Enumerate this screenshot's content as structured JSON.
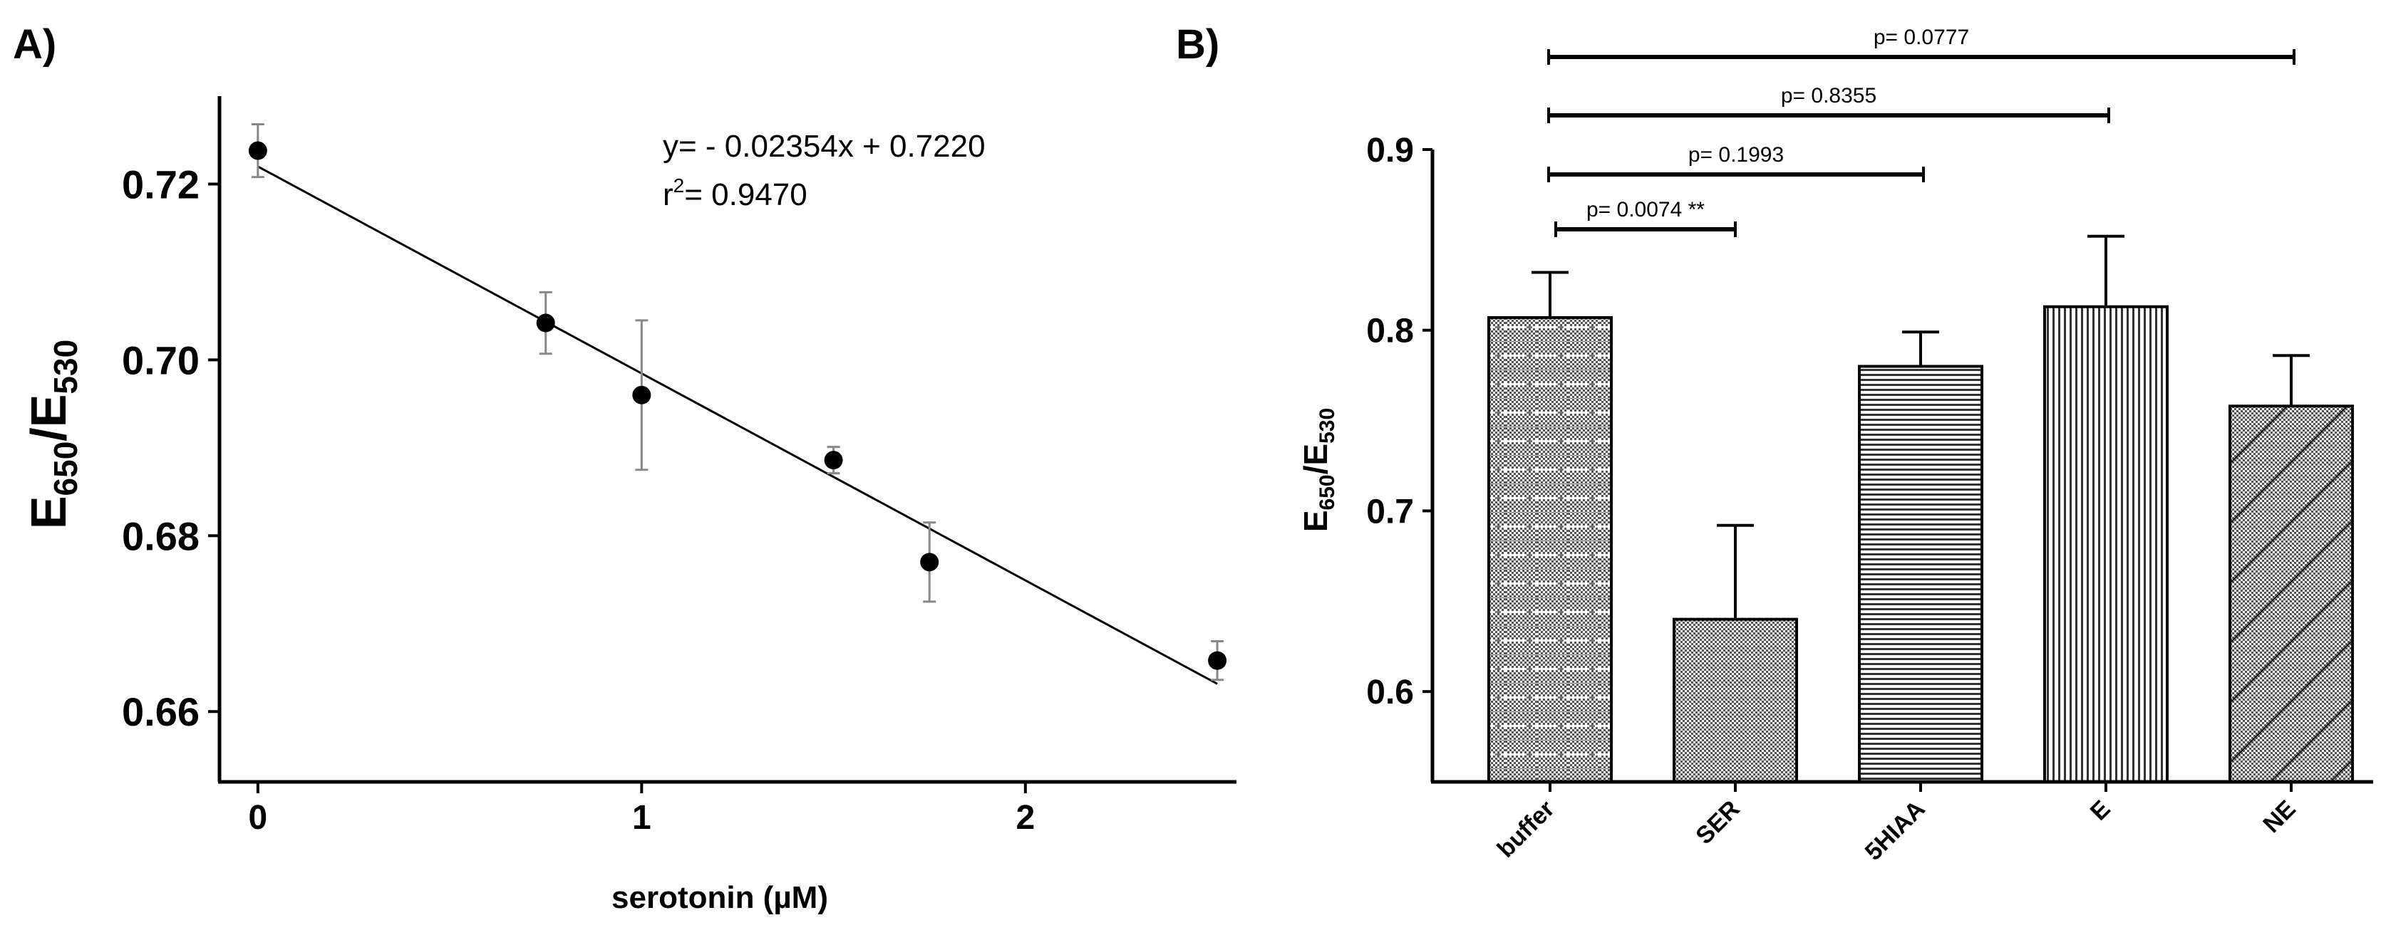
{
  "chart_data": [
    {
      "panel_label": "A)",
      "type": "scatter",
      "title": "",
      "xlabel": "serotonin (µM)",
      "ylabel": {
        "main": "E",
        "sub1": "650",
        "mid": "/E",
        "sub2": "530"
      },
      "xlim": [
        -0.1,
        2.55
      ],
      "ylim": [
        0.652,
        0.73
      ],
      "xticks": [
        0,
        1,
        2
      ],
      "xtick_labels": [
        "0",
        "1",
        "2"
      ],
      "yticks": [
        0.66,
        0.68,
        0.7,
        0.72
      ],
      "ytick_labels": [
        "0.66",
        "0.68",
        "0.70",
        "0.72"
      ],
      "points": [
        {
          "x": 0,
          "y": 0.7238,
          "err": 0.003
        },
        {
          "x": 0.75,
          "y": 0.7042,
          "err": 0.0035
        },
        {
          "x": 1.0,
          "y": 0.696,
          "err": 0.0085
        },
        {
          "x": 1.5,
          "y": 0.6886,
          "err": 0.0015
        },
        {
          "x": 1.75,
          "y": 0.677,
          "err": 0.0045
        },
        {
          "x": 2.5,
          "y": 0.6658,
          "err": 0.0022
        }
      ],
      "fit": {
        "slope": -0.02354,
        "intercept": 0.722,
        "x_range": [
          0,
          2.5
        ]
      },
      "annotation": {
        "equation": "y= - 0.02354x + 0.7220",
        "r2_prefix": "r",
        "r2_sup": "2",
        "r2_value": "= 0.9470"
      }
    },
    {
      "panel_label": "B)",
      "type": "bar",
      "title": "",
      "xlabel": "",
      "ylabel": {
        "main": "E",
        "sub1": "650",
        "mid": "/E",
        "sub2": "530"
      },
      "ylim": [
        0.55,
        0.9
      ],
      "yticks": [
        0.6,
        0.7,
        0.8,
        0.9
      ],
      "ytick_labels": [
        "0.6",
        "0.7",
        "0.8",
        "0.9"
      ],
      "categories": [
        "buffer",
        "SER",
        "5HIAA",
        "E",
        "NE"
      ],
      "values": [
        0.807,
        0.64,
        0.78,
        0.813,
        0.758
      ],
      "errors": [
        0.025,
        0.052,
        0.019,
        0.039,
        0.028
      ],
      "patterns": [
        "checker-dash",
        "checker",
        "hlines",
        "vlines",
        "diag"
      ],
      "comparisons": [
        {
          "from": 0,
          "to": 1,
          "label": "p=  0.0074 **"
        },
        {
          "from": 0,
          "to": 2,
          "label": "p=  0.1993"
        },
        {
          "from": 0,
          "to": 3,
          "label": "p=  0.8355"
        },
        {
          "from": 0,
          "to": 4,
          "label": "p=  0.0777"
        }
      ]
    }
  ]
}
